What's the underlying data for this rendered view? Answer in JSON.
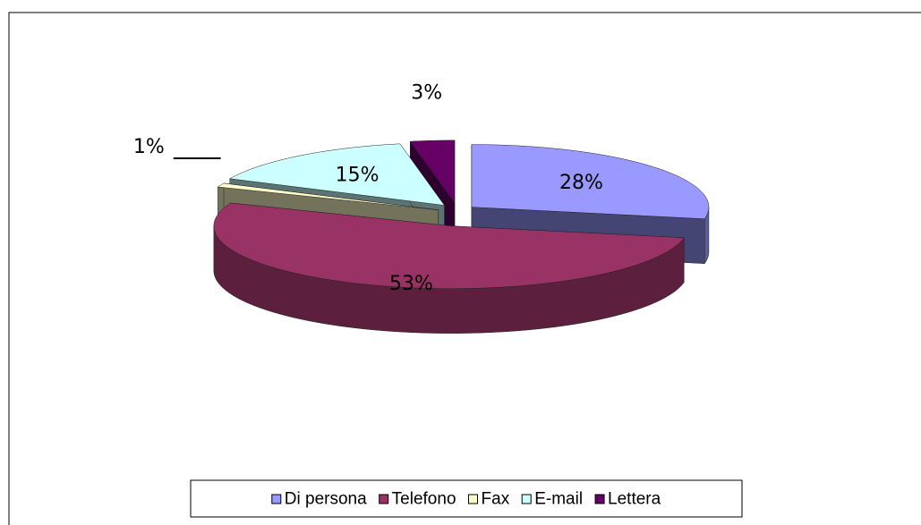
{
  "chart_data": {
    "type": "pie",
    "categories": [
      "Di persona",
      "Telefono",
      "Fax",
      "E-mail",
      "Lettera"
    ],
    "values": [
      28,
      53,
      1,
      15,
      3
    ],
    "value_labels": [
      "28%",
      "53%",
      "1%",
      "15%",
      "3%"
    ],
    "colors": [
      "#9999ff",
      "#993366",
      "#ffffcc",
      "#ccffff",
      "#660066"
    ],
    "legend": "bottom"
  }
}
